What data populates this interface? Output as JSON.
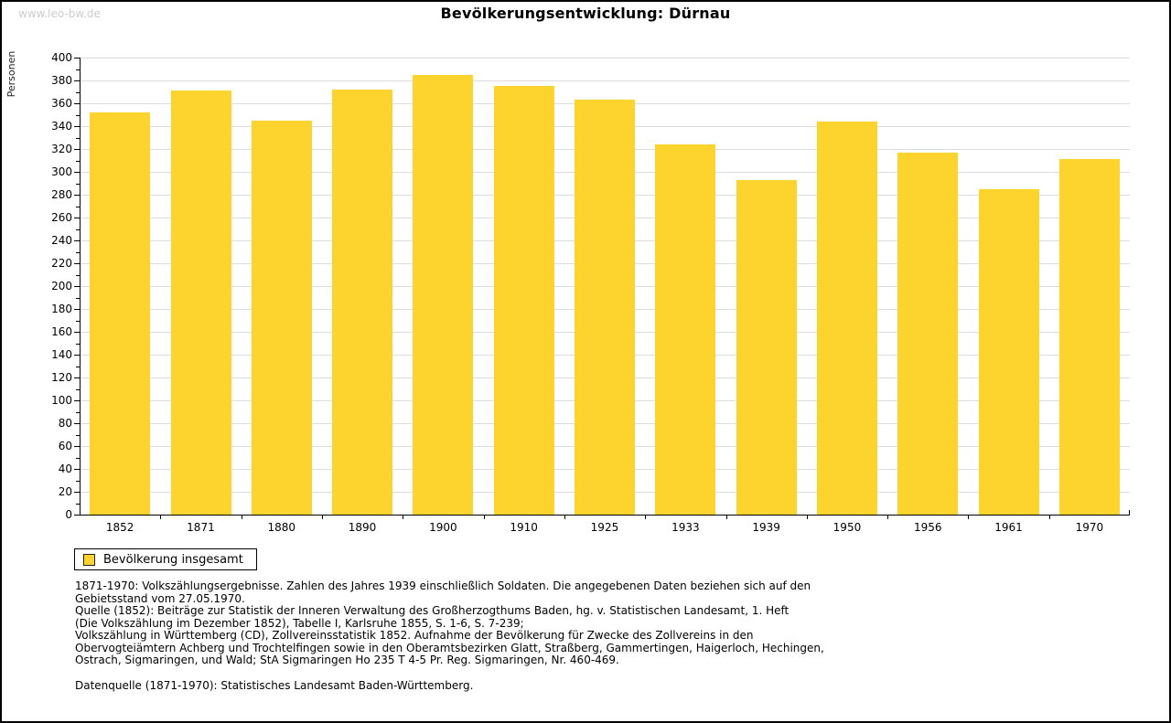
{
  "watermark": "www.leo-bw.de",
  "chart_data": {
    "type": "bar",
    "title": "Bevölkerungsentwicklung: Dürnau",
    "ylabel": "Personen",
    "xlabel": "",
    "categories": [
      "1852",
      "1871",
      "1880",
      "1890",
      "1900",
      "1910",
      "1925",
      "1933",
      "1939",
      "1950",
      "1956",
      "1961",
      "1970"
    ],
    "values": [
      352,
      371,
      345,
      372,
      385,
      375,
      363,
      324,
      293,
      344,
      317,
      285,
      311
    ],
    "ylim": [
      0,
      400
    ],
    "ytick_step": 20,
    "ytick_minor_step": 10,
    "grid": true,
    "legend_position": "bottom-left",
    "legend_entries": [
      "Bevölkerung insgesamt"
    ]
  },
  "legend": {
    "label": "Bevölkerung insgesamt",
    "swatch_color": "#FDD32E"
  },
  "footnotes": [
    "1871-1970: Volkszählungsergebnisse. Zahlen des Jahres 1939 einschließlich Soldaten. Die angegebenen Daten beziehen sich auf den",
    "Gebietsstand vom 27.05.1970.",
    "Quelle (1852): Beiträge zur Statistik der Inneren Verwaltung des Großherzogthums Baden, hg. v. Statistischen Landesamt, 1. Heft",
    "(Die Volkszählung im Dezember 1852), Tabelle I, Karlsruhe 1855, S. 1-6, S. 7-239;",
    "Volkszählung in Württemberg (CD), Zollvereinsstatistik 1852. Aufnahme der Bevölkerung für Zwecke des Zollvereins in den",
    "Obervogteiämtern Achberg und Trochtelfingen sowie in den Oberamtsbezirken Glatt, Straßberg, Gammertingen, Haigerloch, Hechingen,",
    "Ostrach, Sigmaringen, und Wald; StA Sigmaringen Ho 235 T 4-5 Pr. Reg. Sigmaringen, Nr. 460-469."
  ],
  "datasource": "Datenquelle (1871-1970): Statistisches Landesamt Baden-Württemberg.",
  "colors": {
    "bar": "#FDD32E",
    "grid": "#DDDDDD",
    "axis": "#000000",
    "watermark": "#CCCCCC",
    "background": "#FFFFFF"
  }
}
